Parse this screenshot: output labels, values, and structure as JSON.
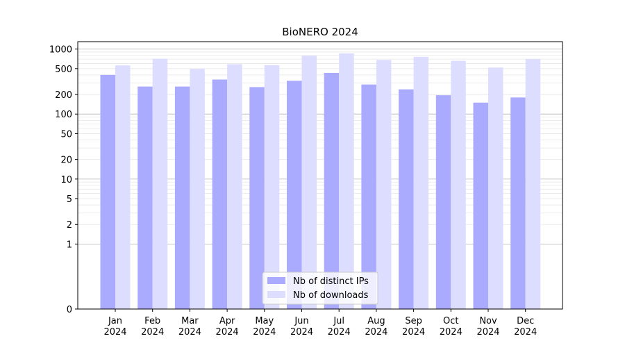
{
  "chart_data": {
    "type": "bar",
    "title": "BioNERO 2024",
    "xlabel": "",
    "ylabel": "",
    "yscale": "symlog",
    "ylim": [
      0,
      1300
    ],
    "y_ticks": [
      0,
      1,
      2,
      5,
      10,
      20,
      50,
      100,
      200,
      500,
      1000
    ],
    "grid": true,
    "legend_position": "lower center",
    "categories": [
      "Jan 2024",
      "Feb 2024",
      "Mar 2024",
      "Apr 2024",
      "May 2024",
      "Jun 2024",
      "Jul 2024",
      "Aug 2024",
      "Sep 2024",
      "Oct 2024",
      "Nov 2024",
      "Dec 2024"
    ],
    "series": [
      {
        "name": "Nb of distinct IPs",
        "color": "#aaaaff",
        "values": [
          400,
          265,
          265,
          340,
          260,
          325,
          430,
          285,
          240,
          195,
          150,
          180
        ]
      },
      {
        "name": "Nb of downloads",
        "color": "#ddddff",
        "values": [
          560,
          710,
          495,
          585,
          565,
          790,
          860,
          680,
          760,
          660,
          520,
          700
        ]
      }
    ]
  }
}
